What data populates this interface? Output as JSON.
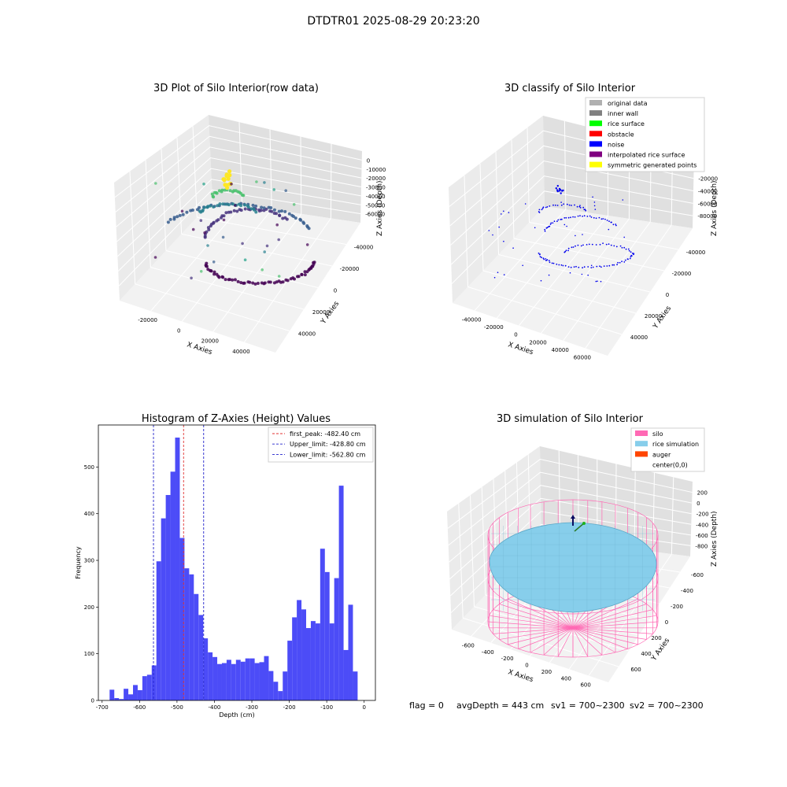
{
  "suptitle": "DTDTR01 2025-08-29 20:23:20",
  "footer": {
    "flag": "flag = 0",
    "avg_depth": "avgDepth = 443 cm",
    "sv1": "sv1 = 700~2300",
    "sv2": "sv2 = 700~2300"
  },
  "colors": {
    "hist_bar": "#4c4cf7",
    "first_peak": "#e03030",
    "limits": "#2222cc",
    "silo": "#ff69b4",
    "rice": "#87ceeb",
    "noise": "#0000ee"
  },
  "chart_data": [
    {
      "type": "scatter",
      "title": "3D Plot of Silo Interior(row data)",
      "xlabel": "X Axies",
      "ylabel": "Y Axies",
      "zlabel": "Z Axies (Depth)",
      "x_ticks": [
        "-20000",
        "0",
        "20000",
        "40000"
      ],
      "y_ticks": [
        "-40000",
        "-20000",
        "0",
        "20000",
        "40000"
      ],
      "z_ticks": [
        "0",
        "-10000",
        "-20000",
        "-30000",
        "-40000",
        "-50000",
        "-60000"
      ],
      "colormap": "viridis (by depth)"
    },
    {
      "type": "scatter",
      "title": "3D classify of Silo Interior",
      "xlabel": "X Axies",
      "ylabel": "Y Axies",
      "zlabel": "Z Axies (Depth)",
      "x_ticks": [
        "-40000",
        "-20000",
        "0",
        "20000",
        "40000",
        "60000"
      ],
      "y_ticks": [
        "-40000",
        "-20000",
        "0",
        "20000",
        "40000"
      ],
      "z_ticks": [
        "0",
        "-20000",
        "-40000",
        "-60000",
        "-80000"
      ],
      "legend_position": "top-right",
      "legend": [
        {
          "label": "original data",
          "color": "#b0b0b0"
        },
        {
          "label": "inner wall",
          "color": "#808080"
        },
        {
          "label": "rice surface",
          "color": "#00ff00"
        },
        {
          "label": "obstacle",
          "color": "#ff0000"
        },
        {
          "label": "noise",
          "color": "#0000ff"
        },
        {
          "label": "interpolated rice surface",
          "color": "#800080"
        },
        {
          "label": "symmetric generated points",
          "color": "#ffff00"
        }
      ]
    },
    {
      "type": "bar",
      "title": "Histogram of Z-Axies (Height) Values",
      "xlabel": "Depth (cm)",
      "ylabel": "Frequency",
      "xlim": [
        -710,
        30
      ],
      "ylim": [
        0,
        590
      ],
      "x_ticks": [
        -700,
        -600,
        -500,
        -400,
        -300,
        -200,
        -100,
        0
      ],
      "y_ticks": [
        0,
        100,
        200,
        300,
        400,
        500
      ],
      "bin_start": -680,
      "bin_width": 12.5,
      "values": [
        23,
        5,
        3,
        25,
        13,
        33,
        22,
        52,
        55,
        75,
        298,
        390,
        440,
        490,
        563,
        348,
        283,
        270,
        228,
        183,
        133,
        103,
        93,
        78,
        80,
        87,
        78,
        87,
        83,
        90,
        90,
        80,
        82,
        95,
        63,
        40,
        20,
        62,
        128,
        178,
        215,
        195,
        155,
        170,
        165,
        325,
        275,
        165,
        262,
        460,
        108,
        205,
        62
      ],
      "lines": [
        {
          "label": "first_peak: -482.40 cm",
          "x": -482.4,
          "style": "red-dashed"
        },
        {
          "label": "Upper_limit: -428.80 cm",
          "x": -428.8,
          "style": "blue-dashed"
        },
        {
          "label": "Lower_limit: -562.80 cm",
          "x": -562.8,
          "style": "blue-dashed"
        }
      ],
      "legend_position": "top-right"
    },
    {
      "type": "scatter",
      "title": "3D simulation of Silo Interior",
      "xlabel": "X Axies",
      "ylabel": "Y Axies",
      "zlabel": "Z Axies (Depth)",
      "x_ticks": [
        "-600",
        "-400",
        "-200",
        "0",
        "200",
        "400",
        "600"
      ],
      "y_ticks": [
        "-600",
        "-400",
        "-200",
        "0",
        "200",
        "400",
        "600"
      ],
      "z_ticks": [
        "200",
        "0",
        "-200",
        "-400",
        "-600",
        "-800"
      ],
      "legend_position": "top-right",
      "legend": [
        {
          "label": "silo",
          "color": "#ff69b4"
        },
        {
          "label": "rice simulation",
          "color": "#87ceeb"
        },
        {
          "label": "auger",
          "color": "#ff4500"
        },
        {
          "label": "center(0,0)",
          "color": ""
        }
      ]
    }
  ]
}
